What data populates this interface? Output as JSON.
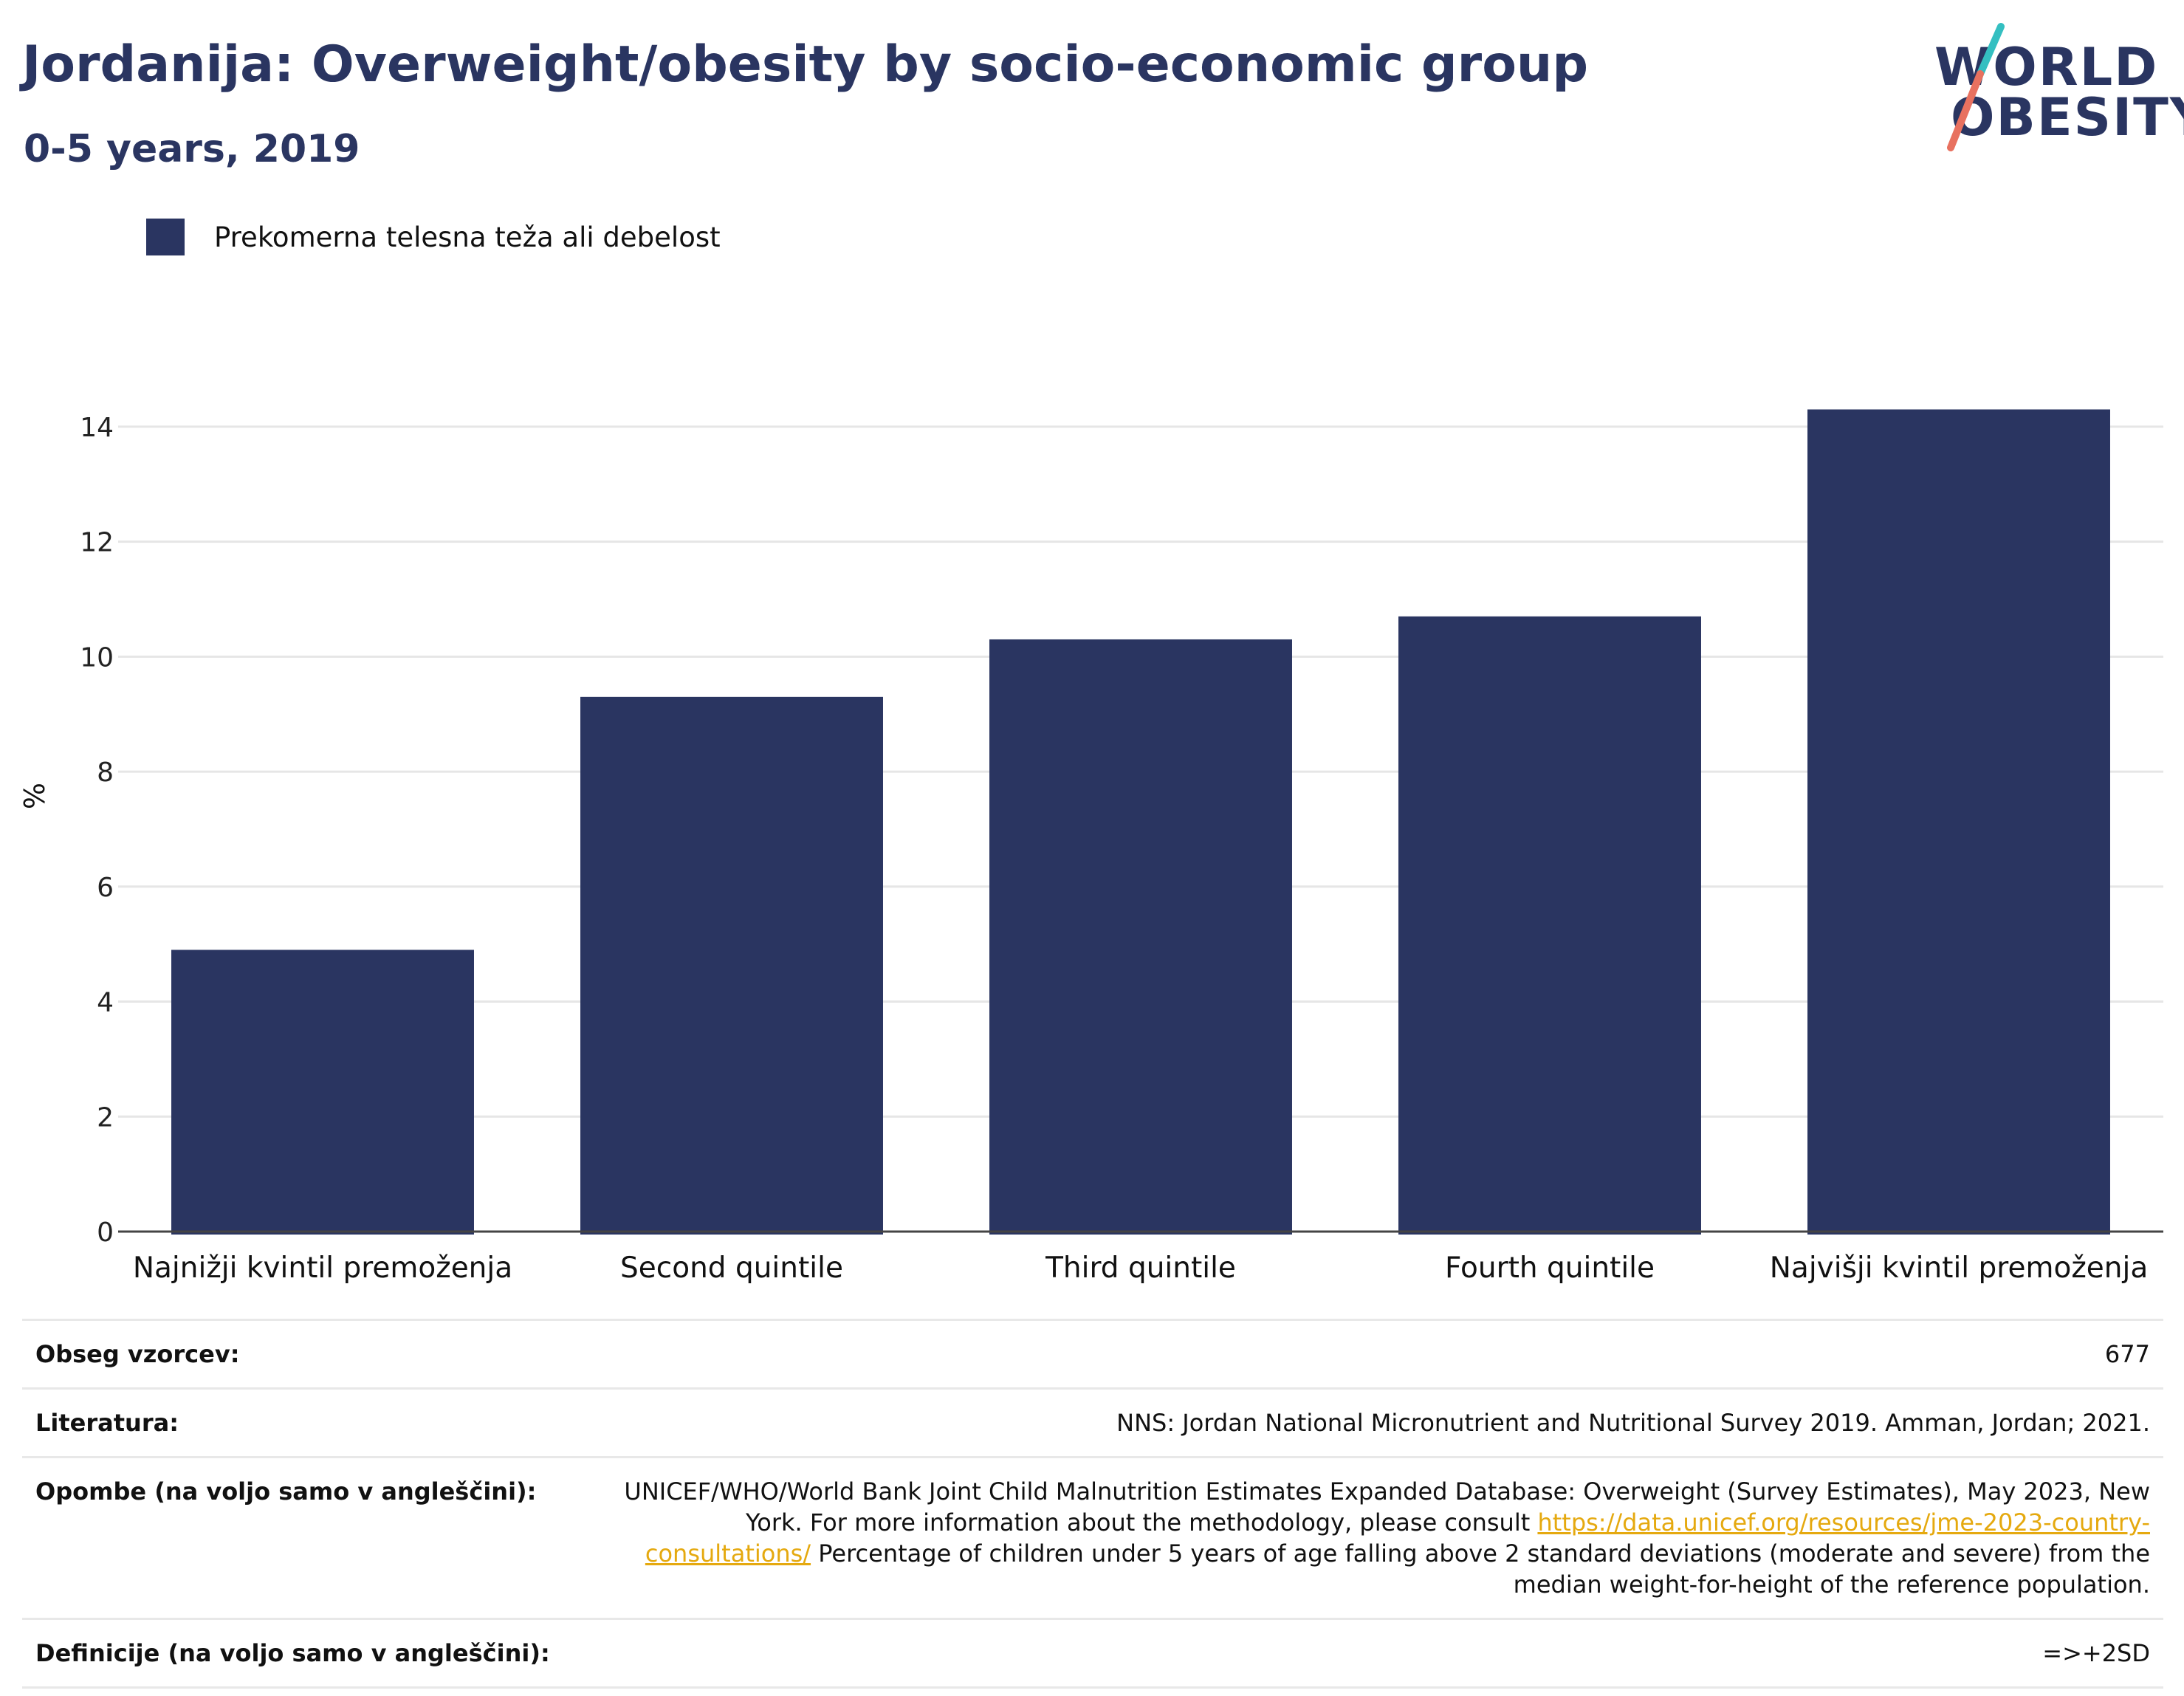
{
  "header": {
    "title": "Jordanija: Overweight/obesity by socio-economic group",
    "subtitle": "0-5 years, 2019"
  },
  "logo": {
    "line1": "WORLD",
    "line2": "OBESITY",
    "slash_colors": [
      "#34bfc1",
      "#e8715f"
    ]
  },
  "legend": {
    "label": "Prekomerna telesna teža ali debelost",
    "color": "#2a3561"
  },
  "chart_data": {
    "type": "bar",
    "categories": [
      "Najnižji kvintil premoženja",
      "Second quintile",
      "Third quintile",
      "Fourth quintile",
      "Najvišji kvintil premoženja"
    ],
    "series": [
      {
        "name": "Prekomerna telesna teža ali debelost",
        "values": [
          4.9,
          9.3,
          10.3,
          10.7,
          14.3
        ],
        "color": "#2a3561"
      }
    ],
    "ylabel": "%",
    "ylim": [
      0,
      15
    ],
    "yticks": [
      0,
      2,
      4,
      6,
      8,
      10,
      12,
      14
    ],
    "grid": true,
    "legend_position": "top-left"
  },
  "info": {
    "sample_label": "Obseg vzorcev:",
    "sample_value": "677",
    "lit_label": "Literatura:",
    "lit_value": "NNS: Jordan National Micronutrient and Nutritional Survey 2019. Amman, Jordan; 2021.",
    "notes_label": "Opombe (na voljo samo v angleščini):",
    "notes_text1": "UNICEF/WHO/World Bank Joint Child Malnutrition Estimates Expanded Database: Overweight (Survey Estimates), May 2023, New York. For more information about the methodology, please consult ",
    "notes_link": "https://data.unicef.org/resources/jme-2023-country-consultations/",
    "notes_text2": " Percentage of children under 5 years of age falling above 2 standard deviations (moderate and severe) from the median weight-for-height of the reference population.",
    "def_label": "Definicije (na voljo samo v angleščini):",
    "def_value": "=>+2SD"
  }
}
